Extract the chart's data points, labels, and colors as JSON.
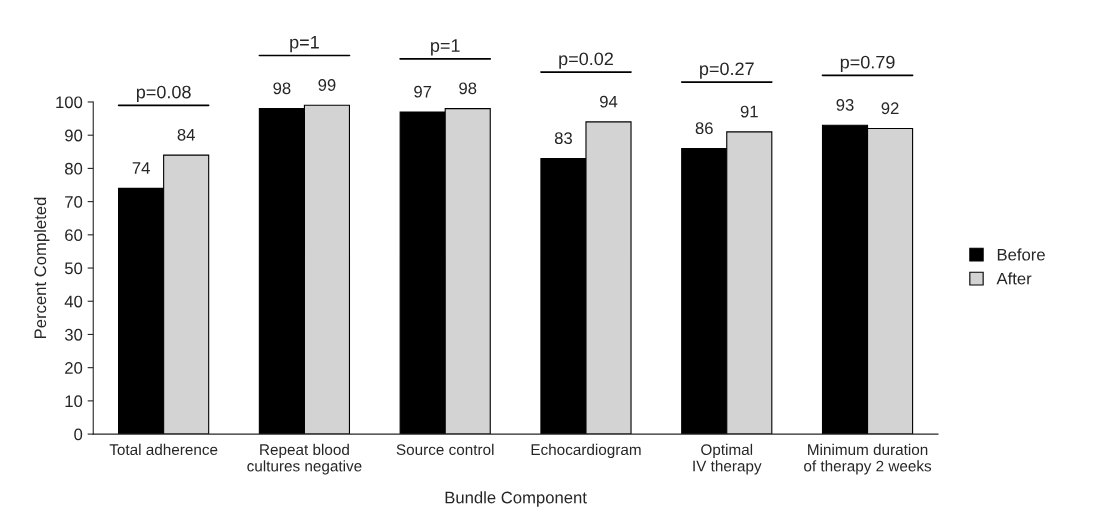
{
  "chart_data": {
    "type": "bar",
    "xlabel": "Bundle Component",
    "ylabel": "Percent Completed",
    "categories": [
      "Total adherence",
      "Repeat blood\ncultures negative",
      "Source control",
      "Echocardiogram",
      "Optimal\nIV therapy",
      "Minimum duration\nof therapy 2 weeks"
    ],
    "series": [
      {
        "name": "Before",
        "color": "#000000",
        "values": [
          74,
          98,
          97,
          83,
          86,
          93
        ]
      },
      {
        "name": "After",
        "color": "#d3d3d3",
        "values": [
          84,
          99,
          98,
          94,
          91,
          92
        ]
      }
    ],
    "ylim": [
      0,
      100
    ],
    "yticks": [
      0,
      10,
      20,
      30,
      40,
      50,
      60,
      70,
      80,
      90,
      100
    ],
    "data_labels": true,
    "legend": "right",
    "grid": false,
    "annotations": [
      "p=0.08",
      "p=1",
      "p=1",
      "p=0.02",
      "p=0.27",
      "p=0.79"
    ]
  }
}
